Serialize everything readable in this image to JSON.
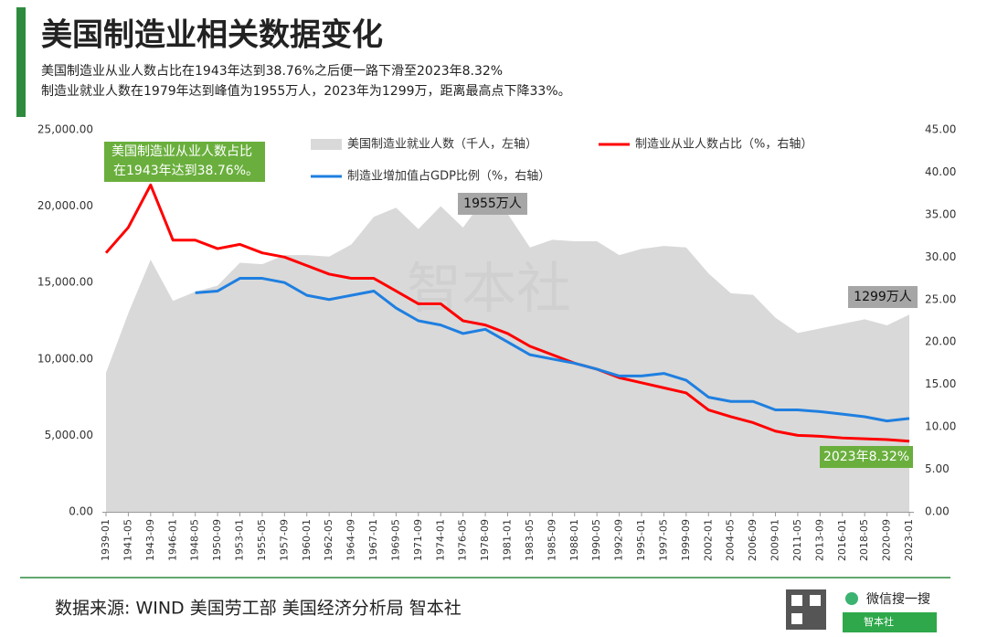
{
  "chart_data": {
    "type": "area-line",
    "title": "美国制造业相关数据变化",
    "subtitle": [
      "美国制造业从业人数占比在1943年达到38.76%之后便一路下滑至2023年8.32%",
      "制造业就业人数在1979年达到峰值为1955万人，2023年为1299万，距离最高点下降33%。"
    ],
    "categories": [
      "1939-01",
      "1941-05",
      "1943-09",
      "1946-01",
      "1948-05",
      "1950-09",
      "1953-01",
      "1955-05",
      "1957-09",
      "1960-01",
      "1962-05",
      "1964-09",
      "1967-01",
      "1969-05",
      "1971-09",
      "1974-01",
      "1976-05",
      "1978-09",
      "1981-01",
      "1983-05",
      "1985-09",
      "1988-01",
      "1990-05",
      "1992-09",
      "1995-01",
      "1997-05",
      "1999-09",
      "2002-01",
      "2004-05",
      "2006-09",
      "2009-01",
      "2011-05",
      "2013-09",
      "2016-01",
      "2018-05",
      "2020-09",
      "2023-01"
    ],
    "series": [
      {
        "name": "美国制造业就业人数（千人，左轴）",
        "color": "#d9d9d9",
        "axis": "y",
        "values": [
          9100,
          13000,
          16500,
          13800,
          14400,
          14800,
          16300,
          16200,
          16800,
          16800,
          16700,
          17500,
          19300,
          19900,
          18500,
          20000,
          18600,
          20600,
          19500,
          17300,
          17800,
          17700,
          17700,
          16800,
          17200,
          17400,
          17300,
          15600,
          14300,
          14200,
          12700,
          11700,
          12000,
          12300,
          12600,
          12200,
          12900
        ]
      },
      {
        "name": "制造业从业人数占比（%，右轴）",
        "color": "#ff0000",
        "axis": "y2",
        "values": [
          30.5,
          33.5,
          38.5,
          32,
          32,
          31,
          31.5,
          30.5,
          30,
          29,
          28,
          27.5,
          27.5,
          26,
          24.5,
          24.5,
          22.5,
          22,
          21,
          19.5,
          18.5,
          17.5,
          16.8,
          15.8,
          15.2,
          14.6,
          14,
          12,
          11.2,
          10.5,
          9.5,
          9,
          8.9,
          8.7,
          8.6,
          8.5,
          8.32
        ]
      },
      {
        "name": "制造业增加值占GDP比例（%，右轴）",
        "color": "#1f7fe0",
        "axis": "y2",
        "values": [
          null,
          null,
          null,
          null,
          25.8,
          26,
          27.5,
          27.5,
          27,
          25.5,
          25,
          25.5,
          26,
          24,
          22.5,
          22,
          21,
          21.5,
          20,
          18.5,
          18,
          17.5,
          16.8,
          16,
          16,
          16.3,
          15.5,
          13.5,
          13,
          13,
          12,
          12,
          11.8,
          11.5,
          11.2,
          10.7,
          11
        ]
      }
    ],
    "ylim": [
      0,
      25000
    ],
    "yticks": [
      {
        "value": 0,
        "label": "0.00"
      },
      {
        "value": 5000,
        "label": "5,000.00"
      },
      {
        "value": 10000,
        "label": "10,000.00"
      },
      {
        "value": 15000,
        "label": "15,000.00"
      },
      {
        "value": 20000,
        "label": "20,000.00"
      },
      {
        "value": 25000,
        "label": "25,000.00"
      }
    ],
    "y2lim": [
      0,
      45
    ],
    "y2ticks": [
      {
        "value": 0,
        "label": "0.00"
      },
      {
        "value": 5,
        "label": "5.00"
      },
      {
        "value": 10,
        "label": "10.00"
      },
      {
        "value": 15,
        "label": "15.00"
      },
      {
        "value": 20,
        "label": "20.00"
      },
      {
        "value": 25,
        "label": "25.00"
      },
      {
        "value": 30,
        "label": "30.00"
      },
      {
        "value": 35,
        "label": "35.00"
      },
      {
        "value": 40,
        "label": "40.00"
      },
      {
        "value": 45,
        "label": "45.00"
      }
    ],
    "annotations": [
      "美国制造业从业人数占比",
      "在1943年达到38.76%。",
      "1955万人",
      "1299万人",
      "2023年8.32%"
    ],
    "watermark": "智本社",
    "source": "数据来源: WIND 美国劳工部 美国经济分析局 智本社"
  },
  "footer": {
    "search": "微信搜一搜",
    "account": "智本社"
  }
}
